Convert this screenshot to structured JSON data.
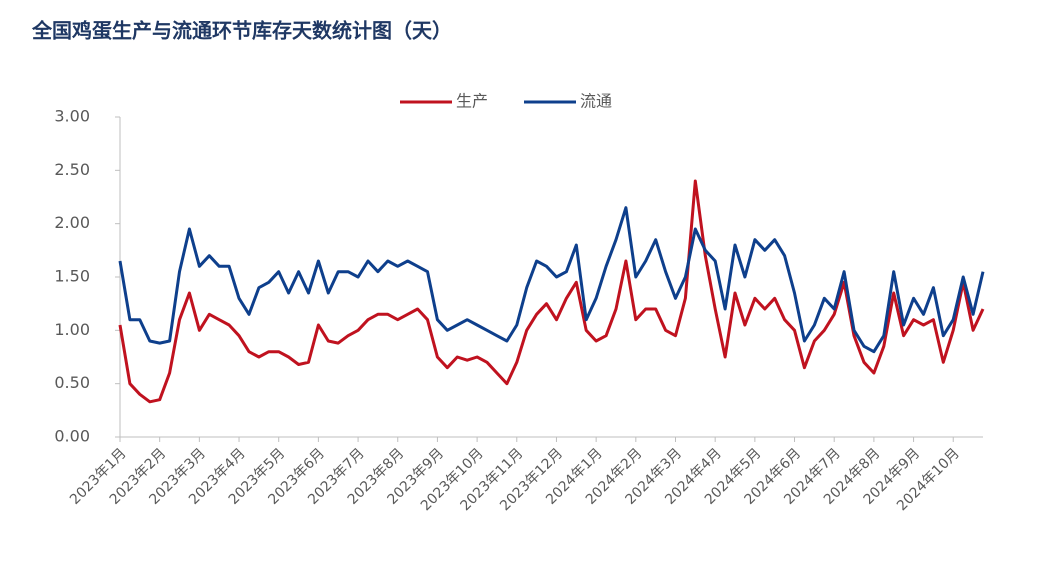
{
  "chart_data": {
    "type": "line",
    "title": "全国鸡蛋生产与流通环节库存天数统计图（天）",
    "categories": [
      "2023年1月",
      null,
      null,
      null,
      "2023年2月",
      null,
      null,
      null,
      "2023年3月",
      null,
      null,
      null,
      "2023年4月",
      null,
      null,
      null,
      "2023年5月",
      null,
      null,
      null,
      "2023年6月",
      null,
      null,
      null,
      "2023年7月",
      null,
      null,
      null,
      "2023年8月",
      null,
      null,
      null,
      "2023年9月",
      null,
      null,
      null,
      "2023年10月",
      null,
      null,
      null,
      "2023年11月",
      null,
      null,
      null,
      "2023年12月",
      null,
      null,
      null,
      "2024年1月",
      null,
      null,
      null,
      "2024年2月",
      null,
      null,
      null,
      "2024年3月",
      null,
      null,
      null,
      "2024年4月",
      null,
      null,
      null,
      "2024年5月",
      null,
      null,
      null,
      "2024年6月",
      null,
      null,
      null,
      "2024年7月",
      null,
      null,
      null,
      "2024年8月",
      null,
      null,
      null,
      "2024年9月",
      null,
      null,
      null,
      "2024年10月",
      null,
      null,
      null
    ],
    "series": [
      {
        "name": "生产",
        "color": "#c0121f",
        "values": [
          1.05,
          0.5,
          0.4,
          0.33,
          0.35,
          0.6,
          1.1,
          1.35,
          1.0,
          1.15,
          1.1,
          1.05,
          0.95,
          0.8,
          0.75,
          0.8,
          0.8,
          0.75,
          0.68,
          0.7,
          1.05,
          0.9,
          0.88,
          0.95,
          1.0,
          1.1,
          1.15,
          1.15,
          1.1,
          1.15,
          1.2,
          1.1,
          0.75,
          0.65,
          0.75,
          0.72,
          0.75,
          0.7,
          0.6,
          0.5,
          0.7,
          1.0,
          1.15,
          1.25,
          1.1,
          1.3,
          1.45,
          1.0,
          0.9,
          0.95,
          1.2,
          1.65,
          1.1,
          1.2,
          1.2,
          1.0,
          0.95,
          1.3,
          2.4,
          1.7,
          1.2,
          0.75,
          1.35,
          1.05,
          1.3,
          1.2,
          1.3,
          1.1,
          1.0,
          0.65,
          0.9,
          1.0,
          1.15,
          1.45,
          0.95,
          0.7,
          0.6,
          0.85,
          1.35,
          0.95,
          1.1,
          1.05,
          1.1,
          0.7,
          1.0,
          1.45,
          1.0,
          1.2
        ]
      },
      {
        "name": "流通",
        "color": "#0e3f8c",
        "values": [
          1.65,
          1.1,
          1.1,
          0.9,
          0.88,
          0.9,
          1.55,
          1.95,
          1.6,
          1.7,
          1.6,
          1.6,
          1.3,
          1.15,
          1.4,
          1.45,
          1.55,
          1.35,
          1.55,
          1.35,
          1.65,
          1.35,
          1.55,
          1.55,
          1.5,
          1.65,
          1.55,
          1.65,
          1.6,
          1.65,
          1.6,
          1.55,
          1.1,
          1.0,
          1.05,
          1.1,
          1.05,
          1.0,
          0.95,
          0.9,
          1.05,
          1.4,
          1.65,
          1.6,
          1.5,
          1.55,
          1.8,
          1.1,
          1.3,
          1.6,
          1.85,
          2.15,
          1.5,
          1.65,
          1.85,
          1.55,
          1.3,
          1.5,
          1.95,
          1.75,
          1.65,
          1.2,
          1.8,
          1.5,
          1.85,
          1.75,
          1.85,
          1.7,
          1.35,
          0.9,
          1.05,
          1.3,
          1.2,
          1.55,
          1.0,
          0.85,
          0.8,
          0.95,
          1.55,
          1.05,
          1.3,
          1.15,
          1.4,
          0.95,
          1.1,
          1.5,
          1.15,
          1.55
        ]
      }
    ],
    "ylim": [
      0,
      3
    ],
    "yticks": [
      {
        "value": 0,
        "label": "0.00"
      },
      {
        "value": 0.5,
        "label": "0.50"
      },
      {
        "value": 1,
        "label": "1.00"
      },
      {
        "value": 1.5,
        "label": "1.50"
      },
      {
        "value": 2,
        "label": "2.00"
      },
      {
        "value": 2.5,
        "label": "2.50"
      },
      {
        "value": 3,
        "label": "3.00"
      }
    ],
    "legend": "top"
  }
}
